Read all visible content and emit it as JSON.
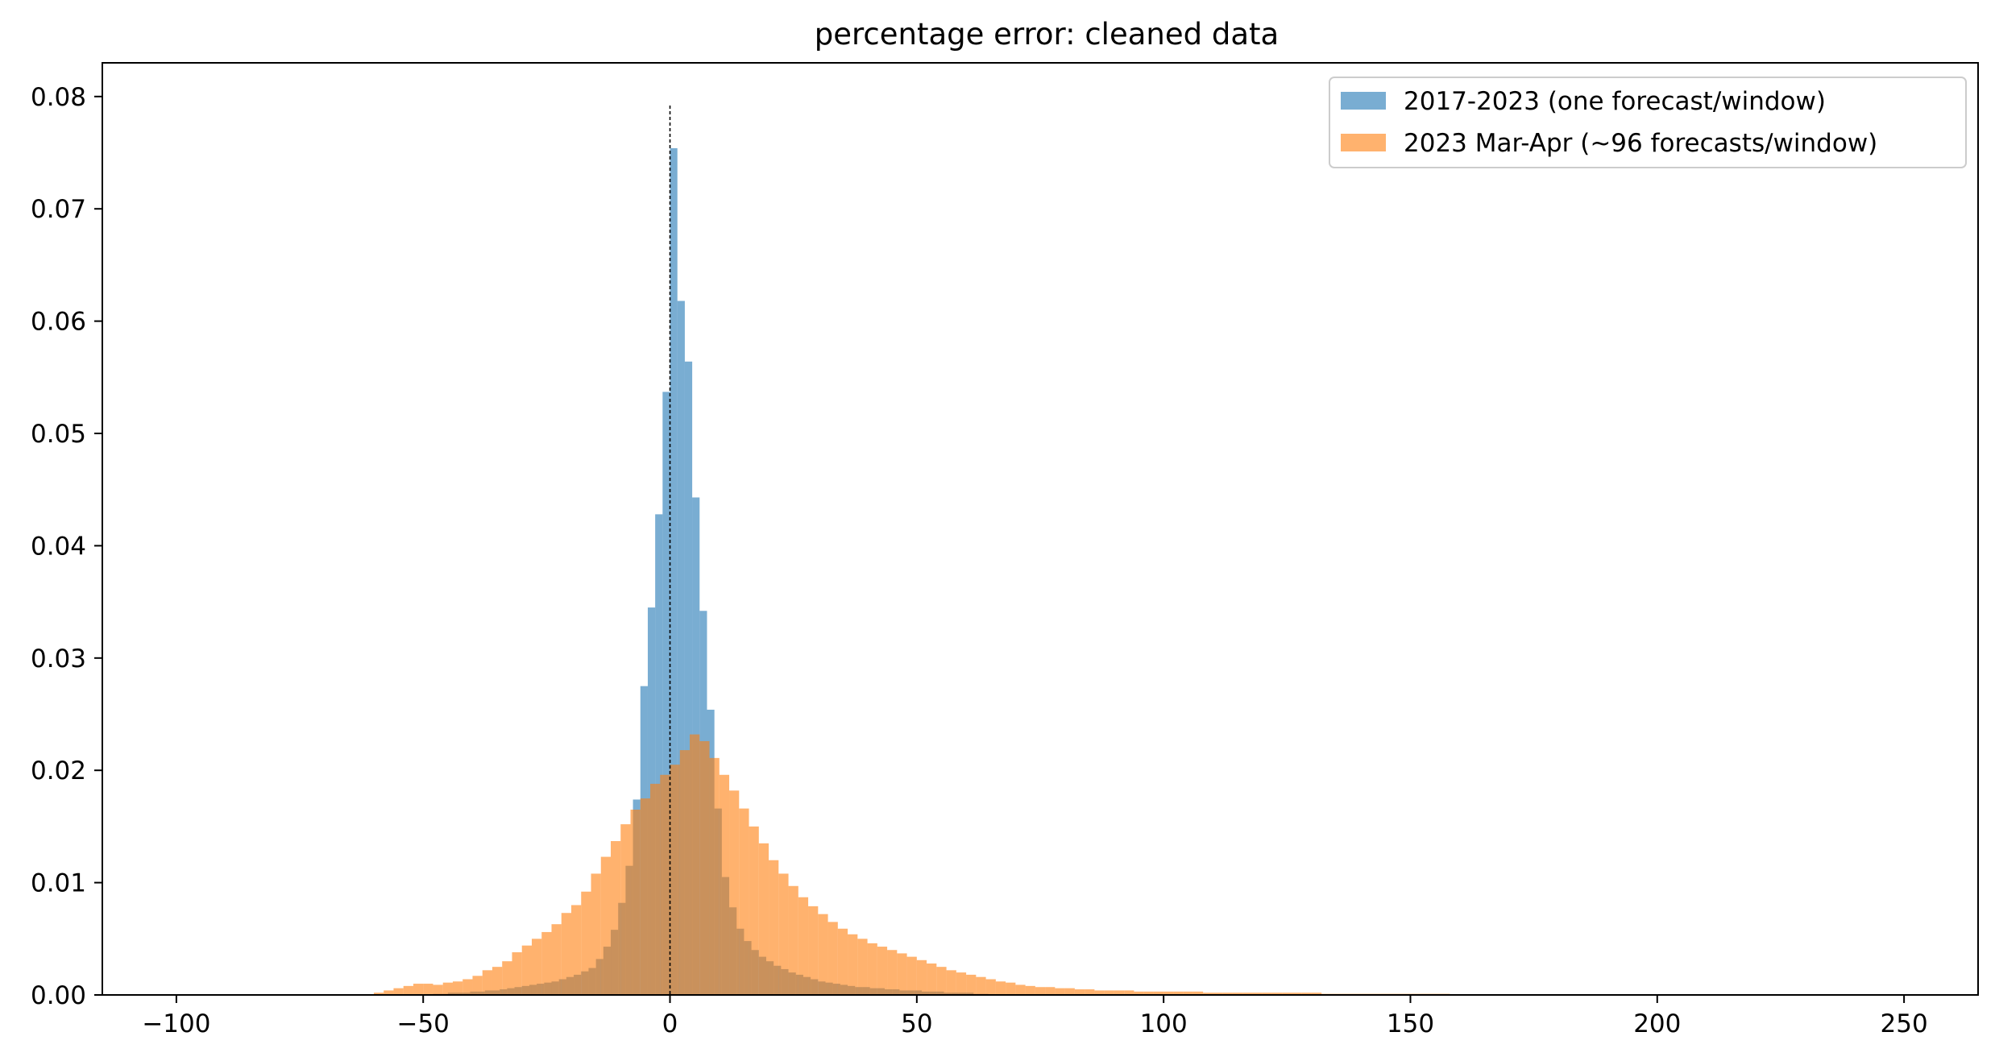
{
  "chart_data": {
    "type": "bar",
    "subtype": "histogram",
    "title": "percentage error: cleaned data",
    "xlabel": "",
    "ylabel": "",
    "xlim": [
      -115,
      265
    ],
    "ylim": [
      0,
      0.083
    ],
    "x_ticks": [
      -100,
      -50,
      0,
      50,
      100,
      150,
      200,
      250
    ],
    "x_tick_labels": [
      "−100",
      "−50",
      "0",
      "50",
      "100",
      "150",
      "200",
      "250"
    ],
    "y_ticks": [
      0.0,
      0.01,
      0.02,
      0.03,
      0.04,
      0.05,
      0.06,
      0.07,
      0.08
    ],
    "y_tick_labels": [
      "0.00",
      "0.01",
      "0.02",
      "0.03",
      "0.04",
      "0.05",
      "0.06",
      "0.07",
      "0.08"
    ],
    "grid": false,
    "legend_position": "top-right",
    "reference_line": {
      "x": 0,
      "style": "dashed",
      "color": "#000000"
    },
    "series": [
      {
        "name": "2017-2023 (one forecast/window)",
        "color": "#1f77b4",
        "opacity": 0.6,
        "bin_width": 1.5,
        "bins": [
          [
            -48,
            0.0001
          ],
          [
            -46.5,
            0.0001
          ],
          [
            -45,
            0.0002
          ],
          [
            -43.5,
            0.0002
          ],
          [
            -42,
            0.0002
          ],
          [
            -40.5,
            0.0003
          ],
          [
            -39,
            0.0003
          ],
          [
            -37.5,
            0.0004
          ],
          [
            -36,
            0.0004
          ],
          [
            -34.5,
            0.0005
          ],
          [
            -33,
            0.0006
          ],
          [
            -31.5,
            0.0007
          ],
          [
            -30,
            0.0008
          ],
          [
            -28.5,
            0.0009
          ],
          [
            -27,
            0.001
          ],
          [
            -25.5,
            0.0011
          ],
          [
            -24,
            0.0012
          ],
          [
            -22.5,
            0.0014
          ],
          [
            -21,
            0.0016
          ],
          [
            -19.5,
            0.0018
          ],
          [
            -18,
            0.0021
          ],
          [
            -16.5,
            0.0024
          ],
          [
            -15,
            0.0032
          ],
          [
            -13.5,
            0.0043
          ],
          [
            -12,
            0.0058
          ],
          [
            -10.5,
            0.0082
          ],
          [
            -9,
            0.0115
          ],
          [
            -7.5,
            0.0174
          ],
          [
            -6,
            0.0275
          ],
          [
            -4.5,
            0.0345
          ],
          [
            -3,
            0.0428
          ],
          [
            -1.5,
            0.0537
          ],
          [
            0,
            0.0754
          ],
          [
            1.5,
            0.0618
          ],
          [
            3,
            0.0564
          ],
          [
            4.5,
            0.0443
          ],
          [
            6,
            0.0342
          ],
          [
            7.5,
            0.0254
          ],
          [
            9,
            0.0166
          ],
          [
            10.5,
            0.0105
          ],
          [
            12,
            0.0078
          ],
          [
            13.5,
            0.0059
          ],
          [
            15,
            0.0048
          ],
          [
            16.5,
            0.004
          ],
          [
            18,
            0.0034
          ],
          [
            19.5,
            0.003
          ],
          [
            21,
            0.0026
          ],
          [
            22.5,
            0.0023
          ],
          [
            24,
            0.002
          ],
          [
            25.5,
            0.0018
          ],
          [
            27,
            0.0016
          ],
          [
            28.5,
            0.0014
          ],
          [
            30,
            0.0012
          ],
          [
            31.5,
            0.0011
          ],
          [
            33,
            0.001
          ],
          [
            34.5,
            0.0009
          ],
          [
            36,
            0.0008
          ],
          [
            37.5,
            0.0007
          ],
          [
            39,
            0.0007
          ],
          [
            40.5,
            0.0006
          ],
          [
            42,
            0.0006
          ],
          [
            43.5,
            0.0005
          ],
          [
            45,
            0.0005
          ],
          [
            46.5,
            0.0004
          ],
          [
            48,
            0.0004
          ],
          [
            49.5,
            0.0004
          ],
          [
            51,
            0.0003
          ],
          [
            52.5,
            0.0003
          ],
          [
            54,
            0.0003
          ],
          [
            55.5,
            0.0002
          ],
          [
            57,
            0.0002
          ],
          [
            58.5,
            0.0002
          ],
          [
            60,
            0.0002
          ],
          [
            61.5,
            0.0001
          ],
          [
            63,
            0.0001
          ]
        ]
      },
      {
        "name": "2023 Mar-Apr (~96 forecasts/window)",
        "color": "#ff7f0e",
        "opacity": 0.6,
        "bin_width": 2,
        "bins": [
          [
            -60,
            0.0002
          ],
          [
            -58,
            0.0004
          ],
          [
            -56,
            0.0006
          ],
          [
            -54,
            0.0008
          ],
          [
            -52,
            0.001
          ],
          [
            -50,
            0.001
          ],
          [
            -48,
            0.0009
          ],
          [
            -46,
            0.0011
          ],
          [
            -44,
            0.0012
          ],
          [
            -42,
            0.0014
          ],
          [
            -40,
            0.0017
          ],
          [
            -38,
            0.0022
          ],
          [
            -36,
            0.0025
          ],
          [
            -34,
            0.003
          ],
          [
            -32,
            0.0038
          ],
          [
            -30,
            0.0044
          ],
          [
            -28,
            0.005
          ],
          [
            -26,
            0.0056
          ],
          [
            -24,
            0.0063
          ],
          [
            -22,
            0.0073
          ],
          [
            -20,
            0.008
          ],
          [
            -18,
            0.0092
          ],
          [
            -16,
            0.0108
          ],
          [
            -14,
            0.0123
          ],
          [
            -12,
            0.0137
          ],
          [
            -10,
            0.0152
          ],
          [
            -8,
            0.0165
          ],
          [
            -6,
            0.0175
          ],
          [
            -4,
            0.0188
          ],
          [
            -2,
            0.0196
          ],
          [
            0,
            0.0205
          ],
          [
            2,
            0.0218
          ],
          [
            4,
            0.0232
          ],
          [
            6,
            0.0226
          ],
          [
            8,
            0.0211
          ],
          [
            10,
            0.0196
          ],
          [
            12,
            0.0182
          ],
          [
            14,
            0.0166
          ],
          [
            16,
            0.015
          ],
          [
            18,
            0.0135
          ],
          [
            20,
            0.012
          ],
          [
            22,
            0.0108
          ],
          [
            24,
            0.0097
          ],
          [
            26,
            0.0087
          ],
          [
            28,
            0.0079
          ],
          [
            30,
            0.0072
          ],
          [
            32,
            0.0065
          ],
          [
            34,
            0.0059
          ],
          [
            36,
            0.0054
          ],
          [
            38,
            0.005
          ],
          [
            40,
            0.0046
          ],
          [
            42,
            0.0043
          ],
          [
            44,
            0.004
          ],
          [
            46,
            0.0037
          ],
          [
            48,
            0.0034
          ],
          [
            50,
            0.0031
          ],
          [
            52,
            0.0028
          ],
          [
            54,
            0.0025
          ],
          [
            56,
            0.0022
          ],
          [
            58,
            0.002
          ],
          [
            60,
            0.0018
          ],
          [
            62,
            0.0016
          ],
          [
            64,
            0.0014
          ],
          [
            66,
            0.0012
          ],
          [
            68,
            0.0011
          ],
          [
            70,
            0.0009
          ],
          [
            72,
            0.0008
          ],
          [
            74,
            0.0007
          ],
          [
            76,
            0.0007
          ],
          [
            78,
            0.0006
          ],
          [
            80,
            0.0006
          ],
          [
            82,
            0.0005
          ],
          [
            84,
            0.0005
          ],
          [
            86,
            0.0004
          ],
          [
            88,
            0.0004
          ],
          [
            90,
            0.0004
          ],
          [
            92,
            0.0004
          ],
          [
            94,
            0.0003
          ],
          [
            96,
            0.0003
          ],
          [
            98,
            0.0003
          ],
          [
            100,
            0.0003
          ],
          [
            102,
            0.0003
          ],
          [
            104,
            0.0003
          ],
          [
            106,
            0.0003
          ],
          [
            108,
            0.0002
          ],
          [
            110,
            0.0002
          ],
          [
            112,
            0.0002
          ],
          [
            114,
            0.0002
          ],
          [
            116,
            0.0002
          ],
          [
            118,
            0.0002
          ],
          [
            120,
            0.0002
          ],
          [
            122,
            0.0002
          ],
          [
            124,
            0.0002
          ],
          [
            126,
            0.0002
          ],
          [
            128,
            0.0002
          ],
          [
            130,
            0.0002
          ],
          [
            132,
            0.0001
          ],
          [
            134,
            0.0001
          ],
          [
            136,
            0.0001
          ],
          [
            138,
            0.0001
          ],
          [
            140,
            0.0001
          ],
          [
            142,
            0.0001
          ],
          [
            144,
            0.0001
          ],
          [
            146,
            0.0001
          ],
          [
            148,
            0.0001
          ],
          [
            150,
            0.0001
          ],
          [
            152,
            0.0001
          ],
          [
            154,
            0.0001
          ],
          [
            156,
            0.0001
          ]
        ]
      }
    ]
  }
}
